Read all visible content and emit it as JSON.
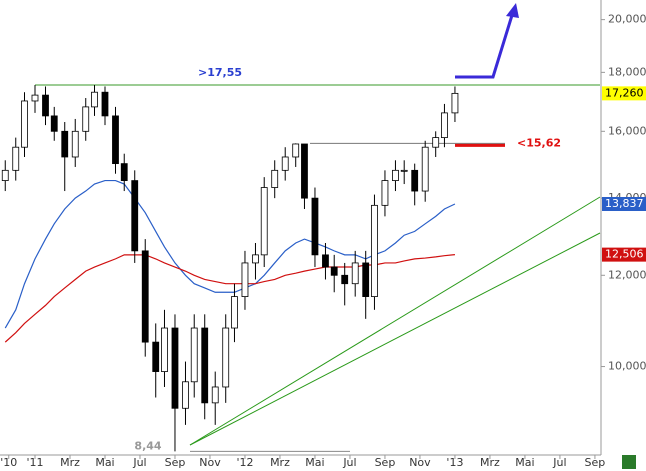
{
  "chart_data": {
    "type": "candlestick",
    "log_scale": true,
    "xlim": [
      -2,
      32.29
    ],
    "ylim": [
      8.38,
      20.8
    ],
    "yticks": [
      {
        "value": 10,
        "label": "10,000"
      },
      {
        "value": 12,
        "label": "12,000"
      },
      {
        "value": 14,
        "label": "14,000"
      },
      {
        "value": 16,
        "label": "16,000"
      },
      {
        "value": 18,
        "label": "18,000"
      },
      {
        "value": 20,
        "label": "20,000"
      }
    ],
    "xticks": [
      {
        "value": -1.5,
        "label": "'10"
      },
      {
        "value": 0,
        "label": "'11"
      },
      {
        "value": 2,
        "label": "Mrz"
      },
      {
        "value": 4,
        "label": "Mai"
      },
      {
        "value": 6,
        "label": "Jul"
      },
      {
        "value": 8,
        "label": "Sep"
      },
      {
        "value": 10,
        "label": "Nov"
      },
      {
        "value": 12,
        "label": "'12"
      },
      {
        "value": 14,
        "label": "Mrz"
      },
      {
        "value": 16,
        "label": "Mai"
      },
      {
        "value": 18,
        "label": "Jul"
      },
      {
        "value": 20,
        "label": "Sep"
      },
      {
        "value": 22,
        "label": "Nov"
      },
      {
        "value": 24,
        "label": "'13"
      },
      {
        "value": 26,
        "label": "Mrz"
      },
      {
        "value": 28,
        "label": "Mai"
      },
      {
        "value": 30,
        "label": "Jul"
      },
      {
        "value": 32,
        "label": "Sep"
      }
    ],
    "x": [
      -1.7,
      -1.1,
      -0.6,
      0,
      0.6,
      1.1,
      1.7,
      2.3,
      2.9,
      3.4,
      4.0,
      4.6,
      5.1,
      5.7,
      6.3,
      6.9,
      7.4,
      8.0,
      8.6,
      9.1,
      9.7,
      10.3,
      10.9,
      11.4,
      12.0,
      12.6,
      13.1,
      13.7,
      14.3,
      14.9,
      15.4,
      16.0,
      16.6,
      17.1,
      17.7,
      18.3,
      18.9,
      19.4,
      20.0,
      20.6,
      21.1,
      21.7,
      22.3,
      22.9,
      23.4,
      24.0
    ],
    "open": [
      14.5,
      14.8,
      15.5,
      17.0,
      17.2,
      16.5,
      16.0,
      15.2,
      16.0,
      16.8,
      17.3,
      16.5,
      15.0,
      14.5,
      12.6,
      10.5,
      9.9,
      10.8,
      9.2,
      9.7,
      10.8,
      9.3,
      9.6,
      10.8,
      11.5,
      12.3,
      12.5,
      14.3,
      14.8,
      15.2,
      15.6,
      14.0,
      12.5,
      12.2,
      12.0,
      11.8,
      12.3,
      11.5,
      13.8,
      14.5,
      14.8,
      14.8,
      14.2,
      15.5,
      15.8,
      16.6
    ],
    "high": [
      15.1,
      15.8,
      17.3,
      17.55,
      17.5,
      16.8,
      16.3,
      16.4,
      17.1,
      17.55,
      17.5,
      16.8,
      15.3,
      14.8,
      12.9,
      10.9,
      11.2,
      11.1,
      10.1,
      11.1,
      11.1,
      9.9,
      11.1,
      11.8,
      12.6,
      12.8,
      14.6,
      15.1,
      15.5,
      15.62,
      15.6,
      14.3,
      12.8,
      12.5,
      12.3,
      12.6,
      12.6,
      14.1,
      14.8,
      15.1,
      15.1,
      15.0,
      15.7,
      16.0,
      16.9,
      17.5
    ],
    "low": [
      14.2,
      14.5,
      15.2,
      16.6,
      16.2,
      15.7,
      14.2,
      14.9,
      15.7,
      16.5,
      16.2,
      14.7,
      14.2,
      12.3,
      10.2,
      9.4,
      9.6,
      8.44,
      8.9,
      9.4,
      9.0,
      8.9,
      9.3,
      10.5,
      11.2,
      11.9,
      12.2,
      14.0,
      14.5,
      14.9,
      13.7,
      12.2,
      11.9,
      11.6,
      11.3,
      11.5,
      11.0,
      11.2,
      13.5,
      14.2,
      14.4,
      13.8,
      13.9,
      15.2,
      15.5,
      16.3
    ],
    "close": [
      14.8,
      15.5,
      17.0,
      17.2,
      16.5,
      16.0,
      15.2,
      16.0,
      16.8,
      17.3,
      16.5,
      15.0,
      14.5,
      12.6,
      10.5,
      9.9,
      10.8,
      9.2,
      9.7,
      10.8,
      9.3,
      9.6,
      10.8,
      11.5,
      12.3,
      12.5,
      14.3,
      14.8,
      15.2,
      15.6,
      14.0,
      12.5,
      12.2,
      12.0,
      11.8,
      12.3,
      11.5,
      13.8,
      14.5,
      14.8,
      14.8,
      14.2,
      15.5,
      15.8,
      16.6,
      17.26
    ],
    "close_label": "17,260",
    "close_label_color": "#ffff00",
    "series": [
      {
        "color": "#2a5fc8",
        "last_label": "13,837",
        "values": [
          10.8,
          11.2,
          11.8,
          12.4,
          12.9,
          13.3,
          13.7,
          14.0,
          14.2,
          14.4,
          14.5,
          14.5,
          14.4,
          14.0,
          13.6,
          13.1,
          12.7,
          12.3,
          12.0,
          11.8,
          11.7,
          11.6,
          11.6,
          11.6,
          11.7,
          11.8,
          12.0,
          12.3,
          12.6,
          12.8,
          12.9,
          12.8,
          12.7,
          12.6,
          12.5,
          12.5,
          12.4,
          12.5,
          12.6,
          12.8,
          13.0,
          13.1,
          13.3,
          13.5,
          13.7,
          13.837
        ]
      },
      {
        "color": "#d01010",
        "last_label": "12,506",
        "values": [
          10.5,
          10.7,
          10.9,
          11.1,
          11.3,
          11.5,
          11.7,
          11.9,
          12.1,
          12.2,
          12.3,
          12.4,
          12.5,
          12.5,
          12.5,
          12.4,
          12.3,
          12.2,
          12.1,
          12.0,
          11.9,
          11.85,
          11.8,
          11.8,
          11.8,
          11.8,
          11.85,
          11.9,
          12.0,
          12.05,
          12.1,
          12.15,
          12.2,
          12.2,
          12.2,
          12.2,
          12.25,
          12.25,
          12.3,
          12.3,
          12.35,
          12.4,
          12.42,
          12.45,
          12.48,
          12.506
        ]
      }
    ],
    "levels": [
      {
        "value": 17.55,
        "label": ">17,55",
        "color": "#2a3fd0",
        "line_color": "#3a9a2a"
      },
      {
        "value": 15.62,
        "label": "<15,62",
        "color": "#e01010",
        "line_color": "#777777"
      },
      {
        "value": 8.44,
        "label": "8,44",
        "color": "#999999",
        "line_color": "#888888"
      }
    ]
  }
}
